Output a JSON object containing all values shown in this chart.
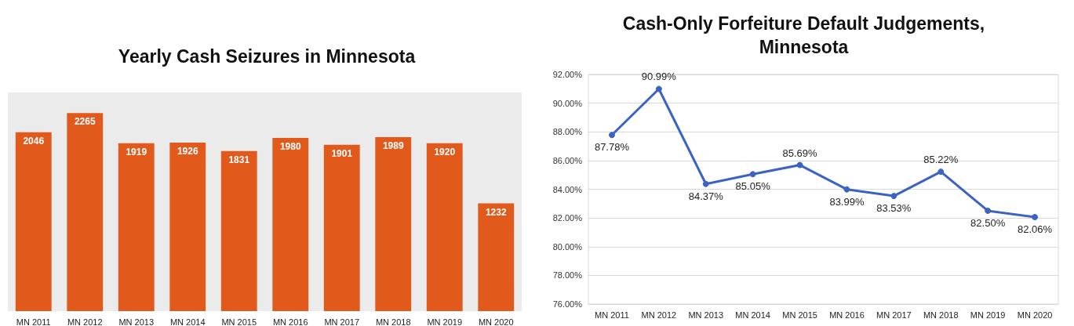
{
  "chart_data": [
    {
      "type": "bar",
      "title": "Yearly Cash Seizures in Minnesota",
      "categories": [
        "MN 2011",
        "MN 2012",
        "MN 2013",
        "MN 2014",
        "MN 2015",
        "MN 2016",
        "MN 2017",
        "MN 2018",
        "MN 2019",
        "MN 2020"
      ],
      "values": [
        2046,
        2265,
        1919,
        1926,
        1831,
        1980,
        1901,
        1989,
        1920,
        1232
      ],
      "color": "#e2591c",
      "data_labels": true,
      "tick_labels": "x",
      "grid": false
    },
    {
      "type": "line",
      "title": "Cash-Only Forfeiture Default Judgements,\nMinnesota",
      "categories": [
        "MN 2011",
        "MN 2012",
        "MN 2013",
        "MN 2014",
        "MN 2015",
        "MN 2016",
        "MN 2017",
        "MN 2018",
        "MN 2019",
        "MN 2020"
      ],
      "values": [
        87.78,
        90.99,
        84.37,
        85.05,
        85.69,
        83.99,
        83.53,
        85.22,
        82.5,
        82.06
      ],
      "value_labels": [
        "87.78%",
        "90.99%",
        "84.37%",
        "85.05%",
        "85.69%",
        "83.99%",
        "83.53%",
        "85.22%",
        "82.50%",
        "82.06%"
      ],
      "color": "#3b63c4",
      "marker": "circle",
      "ylim": [
        76,
        92
      ],
      "yticks": [
        {
          "value": 76,
          "label": "76.00%"
        },
        {
          "value": 78,
          "label": "78.00%"
        },
        {
          "value": 80,
          "label": "80.00%"
        },
        {
          "value": 82,
          "label": "82.00%"
        },
        {
          "value": 84,
          "label": "84.00%"
        },
        {
          "value": 86,
          "label": "86.00%"
        },
        {
          "value": 88,
          "label": "88.00%"
        },
        {
          "value": 90,
          "label": "90.00%"
        },
        {
          "value": 92,
          "label": "92.00%"
        }
      ],
      "grid": "y"
    }
  ]
}
